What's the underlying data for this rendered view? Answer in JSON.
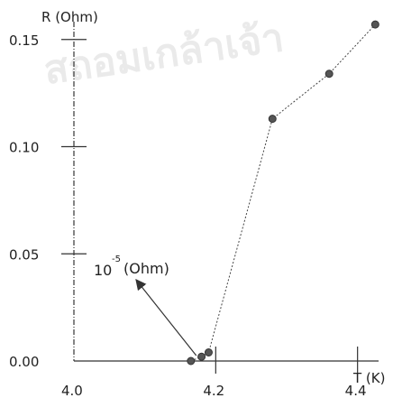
{
  "watermark": "สถอมเกล้าเจ้า",
  "chart_data": {
    "type": "scatter",
    "xlabel": "T (K)",
    "ylabel": "R (Ohm)",
    "xlim": [
      4.0,
      4.45
    ],
    "ylim": [
      0.0,
      0.16
    ],
    "x_ticks": [
      4.0,
      4.2,
      4.4
    ],
    "x_tick_labels": [
      "4.0",
      "4.2",
      "4.4"
    ],
    "y_ticks": [
      0.0,
      0.05,
      0.1,
      0.15
    ],
    "y_tick_labels": [
      "0.00",
      "0.05",
      "0.10",
      "0.15"
    ],
    "grid": false,
    "series": [
      {
        "x": [
          4.165,
          4.18,
          4.19,
          4.28,
          4.36,
          4.425
        ],
        "y": [
          0.0,
          0.002,
          0.004,
          0.113,
          0.134,
          0.157
        ]
      }
    ],
    "annotation": {
      "base": "10",
      "exponent": "-5",
      "unit": "(Ohm)",
      "arrow_to": {
        "x": 4.17,
        "y": 0.0
      }
    }
  }
}
